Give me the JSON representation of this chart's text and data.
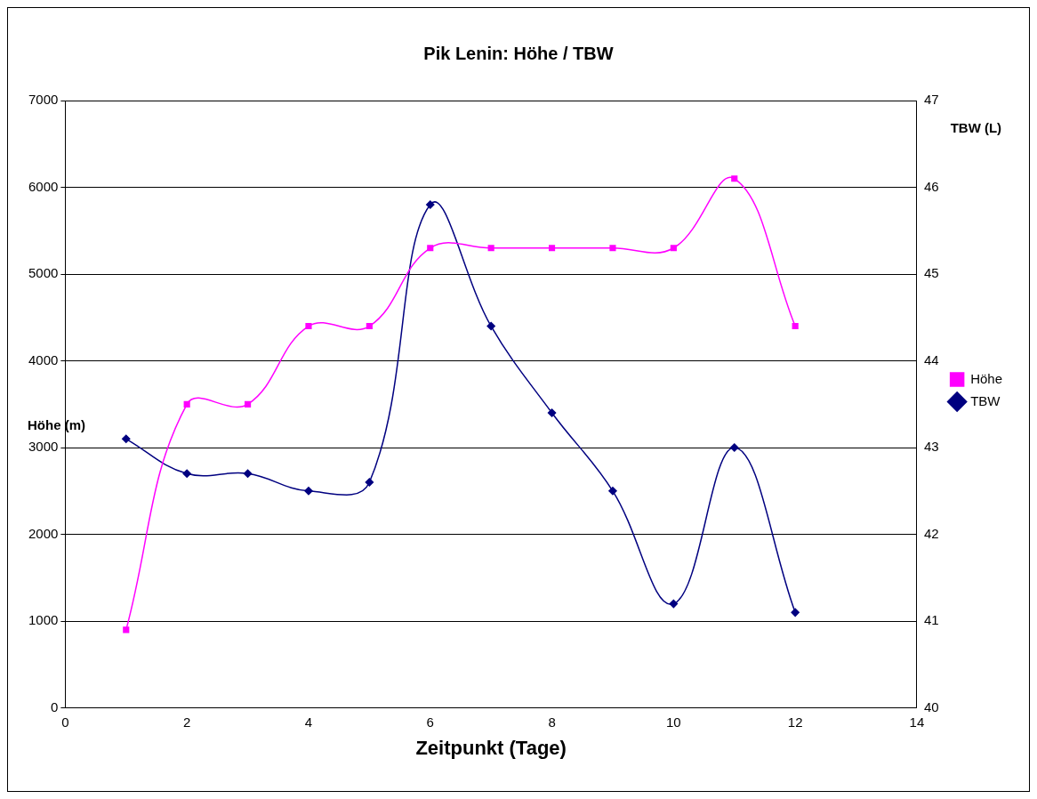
{
  "chart_data": {
    "type": "line",
    "title": "Pik Lenin: Höhe / TBW",
    "xlabel": "Zeitpunkt (Tage)",
    "ylabel": "Höhe (m)",
    "y2label": "TBW (L)",
    "x": [
      1,
      2,
      3,
      4,
      5,
      6,
      7,
      8,
      9,
      10,
      11,
      12
    ],
    "series": [
      {
        "name": "Höhe",
        "color": "#ff00ff",
        "marker": "square",
        "values": [
          900,
          3500,
          3500,
          4400,
          4400,
          5300,
          5300,
          5300,
          5300,
          5300,
          6100,
          4400
        ]
      },
      {
        "name": "TBW",
        "color": "#000080",
        "marker": "diamond",
        "axis": "y2",
        "values": [
          43.1,
          42.7,
          42.7,
          42.5,
          42.6,
          45.8,
          44.4,
          43.4,
          42.5,
          41.2,
          43.0,
          41.1
        ]
      }
    ],
    "xlim": [
      0,
      14
    ],
    "xticks": [
      0,
      2,
      4,
      6,
      8,
      10,
      12,
      14
    ],
    "ylim": [
      0,
      7000
    ],
    "yticks": [
      0,
      1000,
      2000,
      3000,
      4000,
      5000,
      6000,
      7000
    ],
    "y2lim": [
      40,
      47
    ],
    "y2ticks": [
      40,
      41,
      42,
      43,
      44,
      45,
      46,
      47
    ],
    "grid": "y",
    "legend": "right"
  }
}
